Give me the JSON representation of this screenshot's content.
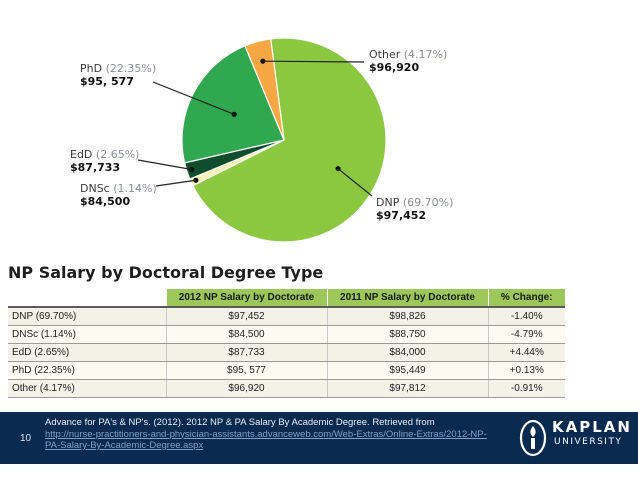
{
  "chart_data": {
    "type": "pie",
    "slices": [
      {
        "label": "DNP",
        "pct_text": "(69.70%)",
        "value_text": "$97,452",
        "percent": 69.7,
        "color": "#8cc83f"
      },
      {
        "label": "DNSc",
        "pct_text": "(1.14%)",
        "value_text": "$84,500",
        "percent": 1.14,
        "color": "#f4f1b4"
      },
      {
        "label": "EdD",
        "pct_text": "(2.65%)",
        "value_text": "$87,733",
        "percent": 2.65,
        "color": "#0f4d2c"
      },
      {
        "label": "PhD",
        "pct_text": "(22.35%)",
        "value_text": "$95, 577",
        "percent": 22.35,
        "color": "#2fa84f"
      },
      {
        "label": "Other",
        "pct_text": "(4.17%)",
        "value_text": "$96,920",
        "percent": 4.17,
        "color": "#f5a743"
      }
    ]
  },
  "table": {
    "title": "NP Salary by Doctoral Degree Type",
    "headers": [
      "",
      "2012 NP Salary by Doctorate",
      "2011 NP Salary by Doctorate",
      "% Change:"
    ],
    "rows": [
      [
        "DNP (69.70%)",
        "$97,452",
        "$98,826",
        "-1.40%"
      ],
      [
        "DNSc (1.14%)",
        "$84,500",
        "$88,750",
        "-4.79%"
      ],
      [
        "EdD (2.65%)",
        "$87,733",
        "$84,000",
        "+4.44%"
      ],
      [
        "PhD (22.35%)",
        "$95, 577",
        "$95,449",
        "+0.13%"
      ],
      [
        "Other (4.17%)",
        "$96,920",
        "$97,812",
        "-0.91%"
      ]
    ]
  },
  "footer": {
    "page_number": "10",
    "citation": "Advance for PA's & NP's. (2012). 2012 NP & PA Salary By Academic Degree. Retrieved from",
    "link": "http://nurse-practitioners-and-physician-assistants.advanceweb.com/Web-Extras/Online-Extras/2012-NP-PA-Salary-By-Academic-Degree.aspx",
    "logo_top": "KAPLAN",
    "logo_bottom": "UNIVERSITY",
    "logo_icon": "kaplan-torch-icon"
  }
}
